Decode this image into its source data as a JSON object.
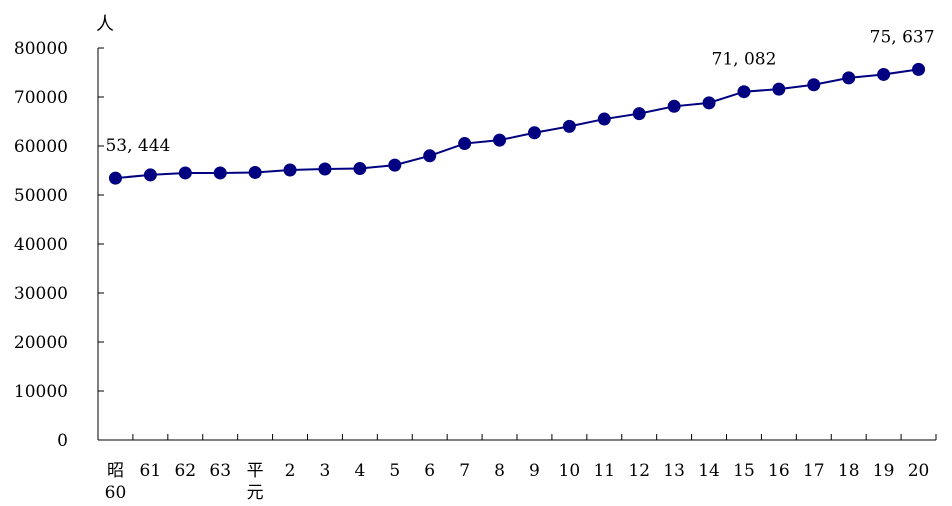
{
  "chart_data": {
    "type": "line",
    "unit_label": "人",
    "categories": [
      "昭\n60",
      "61",
      "62",
      "63",
      "平\n元",
      "2",
      "3",
      "4",
      "5",
      "6",
      "7",
      "8",
      "9",
      "10",
      "11",
      "12",
      "13",
      "14",
      "15",
      "16",
      "17",
      "18",
      "19",
      "20"
    ],
    "values": [
      53444,
      54100,
      54500,
      54500,
      54600,
      55100,
      55300,
      55400,
      56100,
      58000,
      60500,
      61200,
      62700,
      64000,
      65500,
      66600,
      68100,
      68800,
      71082,
      71600,
      72500,
      73900,
      74600,
      75637
    ],
    "data_labels": [
      {
        "index": 0,
        "text": "53, 444"
      },
      {
        "index": 18,
        "text": "71, 082"
      },
      {
        "index": 23,
        "text": "75, 637"
      }
    ],
    "yticks": [
      "0",
      "10000",
      "20000",
      "30000",
      "40000",
      "50000",
      "60000",
      "70000",
      "80000"
    ],
    "ylim": [
      0,
      80000
    ],
    "grid": false,
    "colors": {
      "series": "#000080",
      "axis": "#000000"
    }
  }
}
